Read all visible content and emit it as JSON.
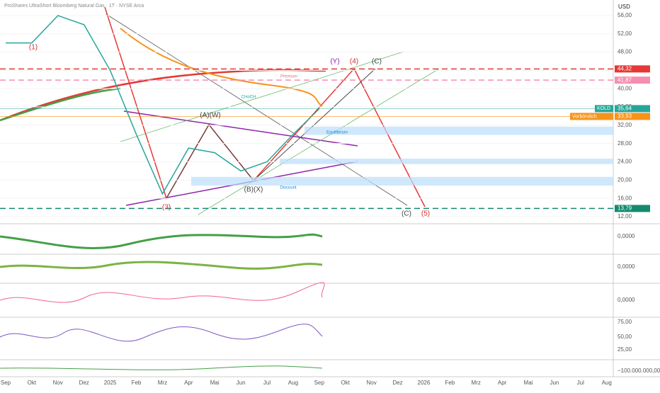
{
  "chart_data": {
    "type": "line",
    "title": "ProShares UltraShort Bloomberg Natural Gas · 1T · NYSE Arca",
    "currency": "USD",
    "categories": [
      "Sep",
      "Okt",
      "Nov",
      "Dez",
      "2025",
      "Feb",
      "Mrz",
      "Apr",
      "Mai",
      "Jun",
      "Jul",
      "Aug",
      "Sep",
      "Okt",
      "Nov",
      "Dez",
      "2026",
      "Feb",
      "Mrz",
      "Apr",
      "Mai",
      "Jun",
      "Jul",
      "Aug"
    ],
    "series": [
      {
        "name": "KOLD",
        "color": "#26a69a",
        "values": [
          50,
          50,
          56,
          54,
          44,
          30,
          17,
          27,
          26,
          22,
          24,
          30,
          35.6,
          null,
          null,
          null,
          null,
          null,
          null,
          null,
          null,
          null,
          null,
          null
        ]
      }
    ],
    "ylim": [
      10.6,
      59.4
    ],
    "yticks": [
      {
        "value": 56,
        "label": "56,00"
      },
      {
        "value": 52,
        "label": "52,00"
      },
      {
        "value": 48,
        "label": "48,00"
      },
      {
        "value": 44,
        "label": "44,00"
      },
      {
        "value": 40,
        "label": "40,00"
      },
      {
        "value": 36,
        "label": "36,00"
      },
      {
        "value": 32,
        "label": "32,00"
      },
      {
        "value": 28,
        "label": "28,00"
      },
      {
        "value": 24,
        "label": "24,00"
      },
      {
        "value": 20,
        "label": "20,00"
      },
      {
        "value": 16,
        "label": "16,00"
      },
      {
        "value": 12,
        "label": "12,00"
      }
    ],
    "levels": [
      {
        "value": 44.32,
        "label": "44,32",
        "color": "#e53935",
        "dashed": true
      },
      {
        "value": 41.87,
        "label": "41,87",
        "color": "#f48fb1",
        "dashed": true
      },
      {
        "value": 35.64,
        "label": "35,64",
        "name": "KOLD",
        "color": "#26a69a",
        "dashed": false
      },
      {
        "value": 33.93,
        "label": "33,93",
        "name": "Vorbörslich",
        "color": "#f7931a",
        "dashed": false
      },
      {
        "value": 13.79,
        "label": "13,79",
        "color": "#138a6e",
        "dashed": true
      }
    ],
    "zones": [
      {
        "from": 29.9,
        "to": 31.7
      },
      {
        "from": 23.5,
        "to": 24.7
      },
      {
        "from": 18.8,
        "to": 20.7
      }
    ],
    "annotations": [
      {
        "text": "(1)",
        "color": "#d32f2f"
      },
      {
        "text": "(3)",
        "color": "#d32f2f"
      },
      {
        "text": "(A)(W)",
        "color": "#444"
      },
      {
        "text": "(B)(X)",
        "color": "#444"
      },
      {
        "text": "(Y)",
        "color": "#8e24aa"
      },
      {
        "text": "(4)",
        "color": "#d32f2f"
      },
      {
        "text": "(C)",
        "color": "#444"
      },
      {
        "text": "(C)",
        "color": "#444"
      },
      {
        "text": "(5)",
        "color": "#d32f2f"
      },
      {
        "text": "Premium",
        "color": "#e57373"
      },
      {
        "text": "Discount",
        "color": "#1e88e5"
      },
      {
        "text": "Equilibrium",
        "color": "#1e88e5"
      },
      {
        "text": "CHoCH",
        "color": "#26a69a"
      }
    ],
    "panels": [
      {
        "ticks": [
          "0,0000"
        ]
      },
      {
        "ticks": [
          "0,0000"
        ]
      },
      {
        "ticks": [
          "0,0000"
        ]
      },
      {
        "ticks": [
          "75,00",
          "50,00",
          "25,00"
        ]
      },
      {
        "ticks": [
          "−100.000.000,00"
        ]
      }
    ]
  }
}
